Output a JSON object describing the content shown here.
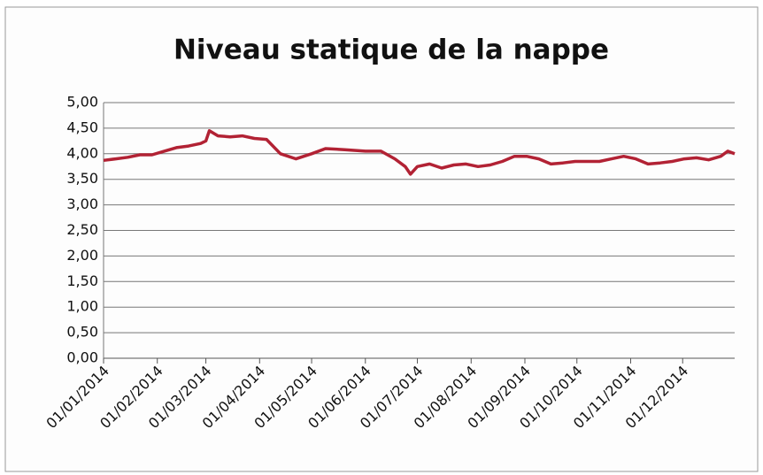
{
  "chart_data": {
    "type": "line",
    "title": "Niveau statique de la nappe",
    "x": [
      "2014-01-01",
      "2014-01-08",
      "2014-01-15",
      "2014-01-22",
      "2014-01-29",
      "2014-02-05",
      "2014-02-12",
      "2014-02-19",
      "2014-02-26",
      "2014-03-01",
      "2014-03-03",
      "2014-03-08",
      "2014-03-15",
      "2014-03-22",
      "2014-03-29",
      "2014-04-05",
      "2014-04-13",
      "2014-04-22",
      "2014-05-01",
      "2014-05-09",
      "2014-05-20",
      "2014-06-01",
      "2014-06-10",
      "2014-06-18",
      "2014-06-24",
      "2014-06-27",
      "2014-07-01",
      "2014-07-08",
      "2014-07-15",
      "2014-07-22",
      "2014-07-29",
      "2014-08-05",
      "2014-08-12",
      "2014-08-19",
      "2014-08-26",
      "2014-09-02",
      "2014-09-09",
      "2014-09-16",
      "2014-09-23",
      "2014-09-30",
      "2014-10-07",
      "2014-10-14",
      "2014-10-21",
      "2014-10-28",
      "2014-11-04",
      "2014-11-11",
      "2014-11-18",
      "2014-11-25",
      "2014-12-02",
      "2014-12-09",
      "2014-12-16",
      "2014-12-23",
      "2014-12-27",
      "2014-12-31"
    ],
    "series": [
      {
        "name": "Niveau statique",
        "color": "#b22234",
        "values": [
          3.87,
          3.9,
          3.93,
          3.98,
          3.98,
          4.05,
          4.12,
          4.15,
          4.2,
          4.25,
          4.45,
          4.35,
          4.33,
          4.35,
          4.3,
          4.28,
          4.0,
          3.9,
          4.0,
          4.1,
          4.08,
          4.05,
          4.05,
          3.9,
          3.75,
          3.6,
          3.75,
          3.8,
          3.72,
          3.78,
          3.8,
          3.75,
          3.78,
          3.85,
          3.95,
          3.95,
          3.9,
          3.8,
          3.82,
          3.85,
          3.85,
          3.85,
          3.9,
          3.95,
          3.9,
          3.8,
          3.82,
          3.85,
          3.9,
          3.92,
          3.88,
          3.95,
          4.05,
          4.0
        ]
      }
    ],
    "xlim": [
      "2014-01-01",
      "2014-12-31"
    ],
    "xticks": [
      {
        "value": "2014-01-01",
        "label": "01/01/2014"
      },
      {
        "value": "2014-02-01",
        "label": "01/02/2014"
      },
      {
        "value": "2014-03-01",
        "label": "01/03/2014"
      },
      {
        "value": "2014-04-01",
        "label": "01/04/2014"
      },
      {
        "value": "2014-05-01",
        "label": "01/05/2014"
      },
      {
        "value": "2014-06-01",
        "label": "01/06/2014"
      },
      {
        "value": "2014-07-01",
        "label": "01/07/2014"
      },
      {
        "value": "2014-08-01",
        "label": "01/08/2014"
      },
      {
        "value": "2014-09-01",
        "label": "01/09/2014"
      },
      {
        "value": "2014-10-01",
        "label": "01/10/2014"
      },
      {
        "value": "2014-11-01",
        "label": "01/11/2014"
      },
      {
        "value": "2014-12-01",
        "label": "01/12/2014"
      }
    ],
    "ylim": [
      0,
      5
    ],
    "yticks": [
      {
        "value": 0,
        "label": "0,00"
      },
      {
        "value": 0.5,
        "label": "0,50"
      },
      {
        "value": 1,
        "label": "1,00"
      },
      {
        "value": 1.5,
        "label": "1,50"
      },
      {
        "value": 2,
        "label": "2,00"
      },
      {
        "value": 2.5,
        "label": "2,50"
      },
      {
        "value": 3,
        "label": "3,00"
      },
      {
        "value": 3.5,
        "label": "3,50"
      },
      {
        "value": 4,
        "label": "4,00"
      },
      {
        "value": 4.5,
        "label": "4,50"
      },
      {
        "value": 5,
        "label": "5,00"
      }
    ],
    "grid": true
  }
}
